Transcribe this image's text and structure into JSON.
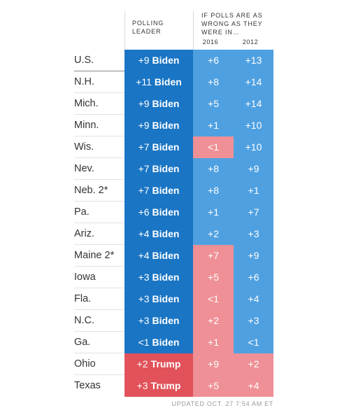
{
  "header": {
    "leader_label": "POLLING LEADER",
    "wrong_label": "IF POLLS ARE AS WRONG AS THEY WERE IN…",
    "year_a": "2016",
    "year_b": "2012"
  },
  "colors": {
    "biden_dark": "#1a75c4",
    "biden_light": "#4fa0e0",
    "trump_dark": "#e1525a",
    "trump_light": "#ee9096"
  },
  "chart_data": {
    "type": "table",
    "columns": [
      "Polling leader",
      "2016",
      "2012"
    ],
    "rows": [
      {
        "state": "U.S.",
        "margin": "+9",
        "leader": "Biden",
        "y2016": "+6",
        "y2016_party": "D",
        "y2012": "+13",
        "y2012_party": "D"
      },
      {
        "state": "N.H.",
        "margin": "+11",
        "leader": "Biden",
        "y2016": "+8",
        "y2016_party": "D",
        "y2012": "+14",
        "y2012_party": "D"
      },
      {
        "state": "Mich.",
        "margin": "+9",
        "leader": "Biden",
        "y2016": "+5",
        "y2016_party": "D",
        "y2012": "+14",
        "y2012_party": "D"
      },
      {
        "state": "Minn.",
        "margin": "+9",
        "leader": "Biden",
        "y2016": "+1",
        "y2016_party": "D",
        "y2012": "+10",
        "y2012_party": "D"
      },
      {
        "state": "Wis.",
        "margin": "+7",
        "leader": "Biden",
        "y2016": "<1",
        "y2016_party": "R",
        "y2012": "+10",
        "y2012_party": "D"
      },
      {
        "state": "Nev.",
        "margin": "+7",
        "leader": "Biden",
        "y2016": "+8",
        "y2016_party": "D",
        "y2012": "+9",
        "y2012_party": "D"
      },
      {
        "state": "Neb. 2*",
        "margin": "+7",
        "leader": "Biden",
        "y2016": "+8",
        "y2016_party": "D",
        "y2012": "+1",
        "y2012_party": "D"
      },
      {
        "state": "Pa.",
        "margin": "+6",
        "leader": "Biden",
        "y2016": "+1",
        "y2016_party": "D",
        "y2012": "+7",
        "y2012_party": "D"
      },
      {
        "state": "Ariz.",
        "margin": "+4",
        "leader": "Biden",
        "y2016": "+2",
        "y2016_party": "D",
        "y2012": "+3",
        "y2012_party": "D"
      },
      {
        "state": "Maine 2*",
        "margin": "+4",
        "leader": "Biden",
        "y2016": "+7",
        "y2016_party": "R",
        "y2012": "+9",
        "y2012_party": "D"
      },
      {
        "state": "Iowa",
        "margin": "+3",
        "leader": "Biden",
        "y2016": "+5",
        "y2016_party": "R",
        "y2012": "+6",
        "y2012_party": "D"
      },
      {
        "state": "Fla.",
        "margin": "+3",
        "leader": "Biden",
        "y2016": "<1",
        "y2016_party": "R",
        "y2012": "+4",
        "y2012_party": "D"
      },
      {
        "state": "N.C.",
        "margin": "+3",
        "leader": "Biden",
        "y2016": "+2",
        "y2016_party": "R",
        "y2012": "+3",
        "y2012_party": "D"
      },
      {
        "state": "Ga.",
        "margin": "<1",
        "leader": "Biden",
        "y2016": "+1",
        "y2016_party": "R",
        "y2012": "<1",
        "y2012_party": "D"
      },
      {
        "state": "Ohio",
        "margin": "+2",
        "leader": "Trump",
        "y2016": "+9",
        "y2016_party": "R",
        "y2012": "+2",
        "y2012_party": "R"
      },
      {
        "state": "Texas",
        "margin": "+3",
        "leader": "Trump",
        "y2016": "+5",
        "y2016_party": "R",
        "y2012": "+4",
        "y2012_party": "R"
      }
    ]
  },
  "footer": {
    "updated": "UPDATED OCT. 27 7:54 AM ET"
  }
}
